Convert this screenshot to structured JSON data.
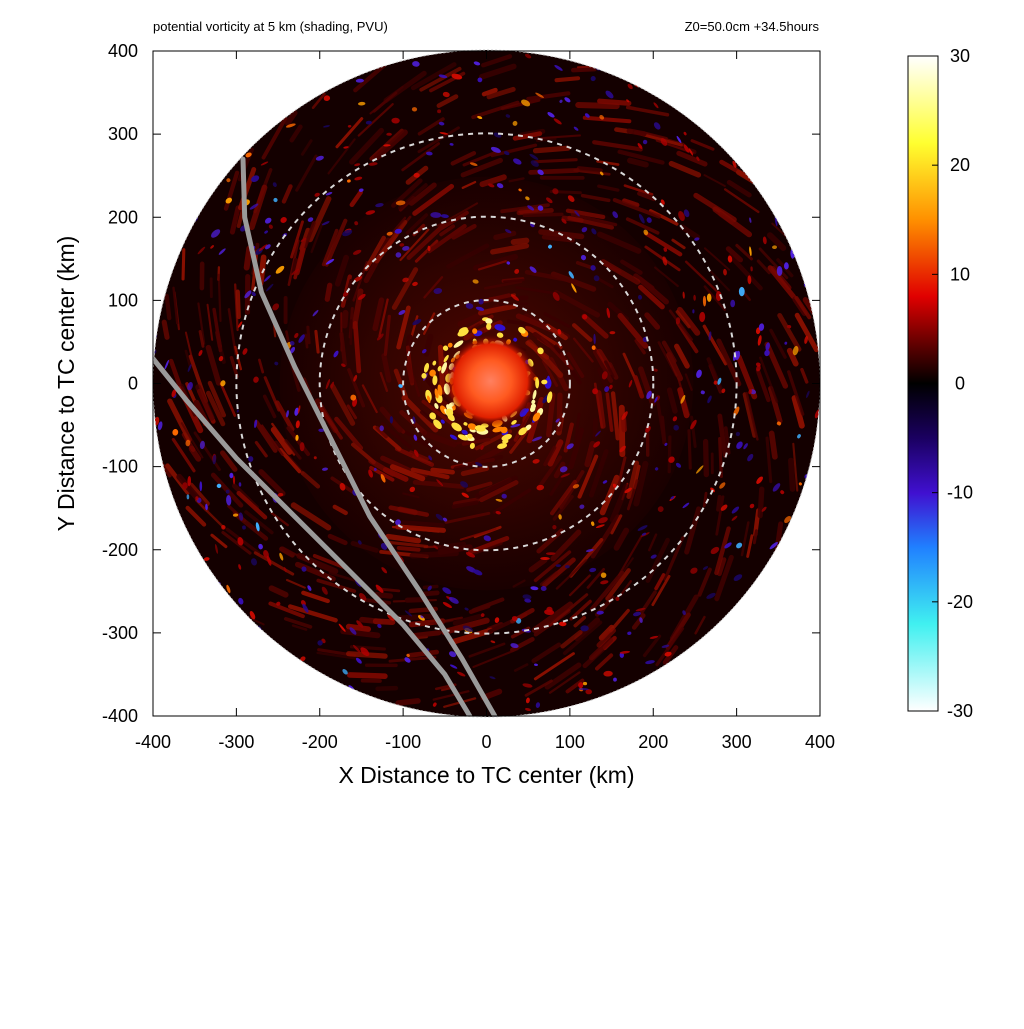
{
  "chart_data": {
    "type": "heatmap",
    "title": "potential vorticity at 5 km (shading, PVU)",
    "subtitle": "Z0=50.0cm  +34.5hours",
    "xlabel": "X Distance to TC center (km)",
    "ylabel": "Y Distance to TC center (km)",
    "xlim": [
      -400,
      400
    ],
    "ylim": [
      -400,
      400
    ],
    "xticks": [
      "-400",
      "-300",
      "-200",
      "-100",
      "0",
      "100",
      "200",
      "300",
      "400"
    ],
    "yticks": [
      "400",
      "300",
      "200",
      "100",
      "0",
      "-100",
      "-200",
      "-300",
      "-400"
    ],
    "colorbar": {
      "range": [
        -30,
        30
      ],
      "ticks": [
        "30",
        "20",
        "10",
        "0",
        "-10",
        "-20",
        "-30"
      ],
      "stops": [
        {
          "value": 30,
          "color": "#ffffff"
        },
        {
          "value": 22,
          "color": "#ffff30"
        },
        {
          "value": 15,
          "color": "#ff9000"
        },
        {
          "value": 8,
          "color": "#e00000"
        },
        {
          "value": 3,
          "color": "#500000"
        },
        {
          "value": 0,
          "color": "#000000"
        },
        {
          "value": -5,
          "color": "#1a0060"
        },
        {
          "value": -10,
          "color": "#4010d0"
        },
        {
          "value": -15,
          "color": "#2080ff"
        },
        {
          "value": -22,
          "color": "#40f0f0"
        },
        {
          "value": -30,
          "color": "#ffffff"
        }
      ]
    },
    "domain_radius_km": 400,
    "range_rings_km": [
      100,
      200,
      300
    ],
    "grid": false,
    "legend": "colorbar right"
  }
}
